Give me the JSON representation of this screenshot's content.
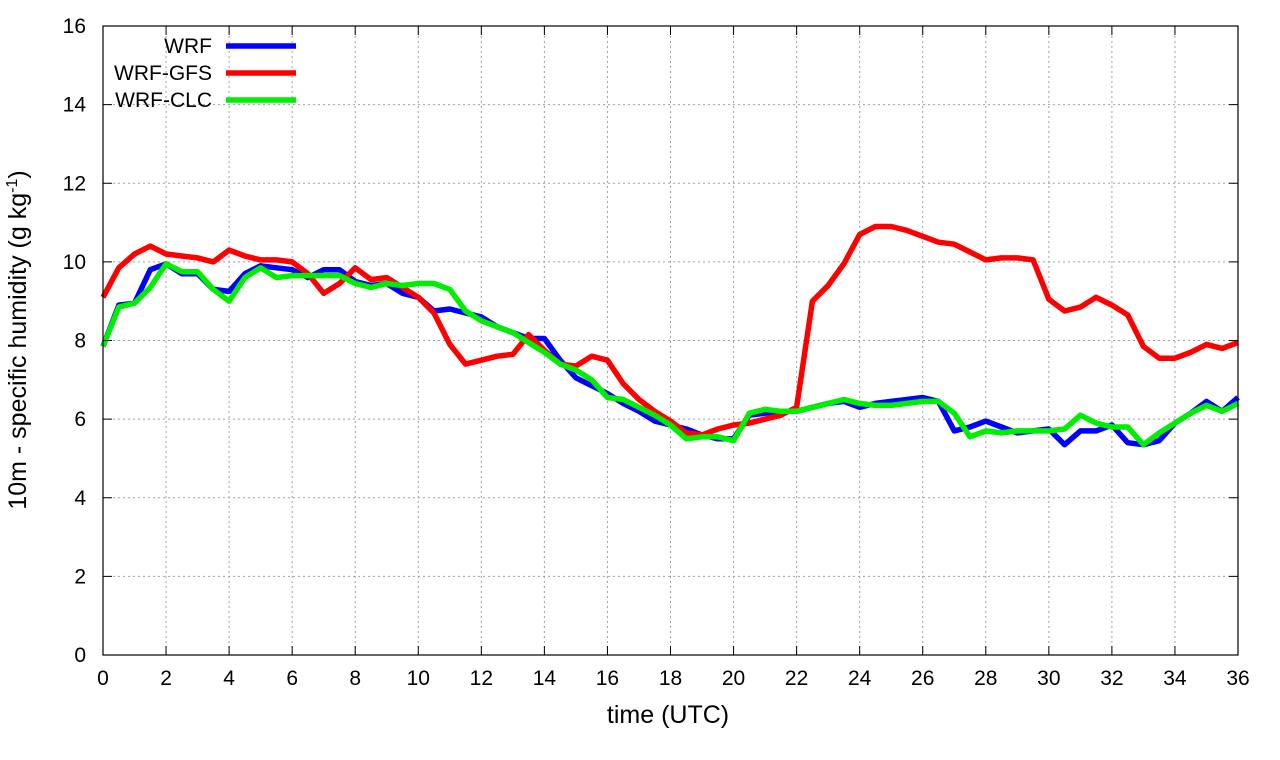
{
  "chart_data": {
    "type": "line",
    "xlabel": "time (UTC)",
    "ylabel": {
      "main": "10m - specific humidity (g kg",
      "sup": "-1",
      "end": ")"
    },
    "xlim": [
      0,
      36
    ],
    "ylim": [
      0,
      16
    ],
    "xticks": [
      0,
      2,
      4,
      6,
      8,
      10,
      12,
      14,
      16,
      18,
      20,
      22,
      24,
      26,
      28,
      30,
      32,
      34,
      36
    ],
    "yticks": [
      0,
      2,
      4,
      6,
      8,
      10,
      12,
      14,
      16
    ],
    "grid": true,
    "legend_position": "top-left",
    "series": [
      {
        "name": "WRF",
        "color": "#0000ff",
        "x": [
          0,
          0.5,
          1,
          1.5,
          2,
          2.5,
          3,
          3.5,
          4,
          4.5,
          5,
          5.5,
          6,
          6.5,
          7,
          7.5,
          8,
          8.5,
          9,
          9.5,
          10,
          10.5,
          11,
          11.5,
          12,
          12.5,
          13,
          13.5,
          14,
          14.5,
          15,
          15.5,
          16,
          16.5,
          17,
          17.5,
          18,
          18.5,
          19,
          19.5,
          20,
          20.5,
          21,
          21.5,
          22,
          22.5,
          23,
          23.5,
          24,
          24.5,
          25,
          25.5,
          26,
          26.5,
          27,
          27.5,
          28,
          28.5,
          29,
          29.5,
          30,
          30.5,
          31,
          31.5,
          32,
          32.5,
          33,
          33.5,
          34,
          34.5,
          35,
          35.5,
          36
        ],
        "values": [
          7.85,
          8.9,
          8.95,
          9.8,
          9.95,
          9.7,
          9.7,
          9.3,
          9.25,
          9.7,
          9.9,
          9.85,
          9.8,
          9.6,
          9.8,
          9.8,
          9.5,
          9.4,
          9.45,
          9.2,
          9.1,
          8.75,
          8.8,
          8.7,
          8.6,
          8.35,
          8.2,
          8.05,
          8.05,
          7.5,
          7.05,
          6.85,
          6.65,
          6.4,
          6.2,
          5.95,
          5.85,
          5.75,
          5.6,
          5.5,
          5.5,
          6.1,
          6.15,
          6.2,
          6.2,
          6.3,
          6.4,
          6.45,
          6.3,
          6.4,
          6.45,
          6.5,
          6.55,
          6.45,
          5.7,
          5.8,
          5.95,
          5.8,
          5.65,
          5.7,
          5.75,
          5.35,
          5.7,
          5.7,
          5.85,
          5.4,
          5.35,
          5.45,
          5.9,
          6.15,
          6.45,
          6.2,
          6.55
        ]
      },
      {
        "name": "WRF-GFS",
        "color": "#ff0000",
        "x": [
          0,
          0.5,
          1,
          1.5,
          2,
          2.5,
          3,
          3.5,
          4,
          4.5,
          5,
          5.5,
          6,
          6.5,
          7,
          7.5,
          8,
          8.5,
          9,
          9.5,
          10,
          10.5,
          11,
          11.5,
          12,
          12.5,
          13,
          13.5,
          14,
          14.5,
          15,
          15.5,
          16,
          16.5,
          17,
          17.5,
          18,
          18.5,
          19,
          19.5,
          20,
          20.5,
          21,
          21.5,
          22,
          22.5,
          23,
          23.5,
          24,
          24.5,
          25,
          25.5,
          26,
          26.5,
          27,
          27.5,
          28,
          28.5,
          29,
          29.5,
          30,
          30.5,
          31,
          31.5,
          32,
          32.5,
          33,
          33.5,
          34,
          34.5,
          35,
          35.5,
          36
        ],
        "values": [
          9.1,
          9.85,
          10.2,
          10.4,
          10.2,
          10.15,
          10.1,
          10.0,
          10.3,
          10.15,
          10.05,
          10.05,
          10.0,
          9.7,
          9.2,
          9.45,
          9.85,
          9.55,
          9.6,
          9.35,
          9.1,
          8.7,
          7.9,
          7.4,
          7.5,
          7.6,
          7.65,
          8.15,
          7.75,
          7.4,
          7.35,
          7.6,
          7.5,
          6.9,
          6.5,
          6.2,
          5.95,
          5.65,
          5.6,
          5.75,
          5.85,
          5.9,
          6.0,
          6.1,
          6.3,
          9.0,
          9.4,
          9.95,
          10.7,
          10.9,
          10.9,
          10.8,
          10.65,
          10.5,
          10.45,
          10.25,
          10.05,
          10.1,
          10.1,
          10.05,
          9.05,
          8.75,
          8.85,
          9.1,
          8.9,
          8.65,
          7.85,
          7.55,
          7.55,
          7.7,
          7.9,
          7.8,
          7.95
        ]
      },
      {
        "name": "WRF-CLC",
        "color": "#00ee00",
        "x": [
          0,
          0.5,
          1,
          1.5,
          2,
          2.5,
          3,
          3.5,
          4,
          4.5,
          5,
          5.5,
          6,
          6.5,
          7,
          7.5,
          8,
          8.5,
          9,
          9.5,
          10,
          10.5,
          11,
          11.5,
          12,
          12.5,
          13,
          13.5,
          14,
          14.5,
          15,
          15.5,
          16,
          16.5,
          17,
          17.5,
          18,
          18.5,
          19,
          19.5,
          20,
          20.5,
          21,
          21.5,
          22,
          22.5,
          23,
          23.5,
          24,
          24.5,
          25,
          25.5,
          26,
          26.5,
          27,
          27.5,
          28,
          28.5,
          29,
          29.5,
          30,
          30.5,
          31,
          31.5,
          32,
          32.5,
          33,
          33.5,
          34,
          34.5,
          35,
          35.5,
          36
        ],
        "values": [
          7.85,
          8.85,
          8.95,
          9.35,
          9.95,
          9.75,
          9.75,
          9.3,
          9.0,
          9.6,
          9.85,
          9.6,
          9.65,
          9.65,
          9.65,
          9.65,
          9.45,
          9.35,
          9.45,
          9.4,
          9.45,
          9.45,
          9.3,
          8.75,
          8.5,
          8.35,
          8.2,
          7.95,
          7.7,
          7.4,
          7.25,
          7.0,
          6.55,
          6.5,
          6.3,
          6.1,
          5.85,
          5.5,
          5.55,
          5.55,
          5.45,
          6.15,
          6.25,
          6.2,
          6.2,
          6.3,
          6.4,
          6.5,
          6.4,
          6.35,
          6.35,
          6.4,
          6.45,
          6.45,
          6.15,
          5.55,
          5.7,
          5.65,
          5.7,
          5.7,
          5.7,
          5.75,
          6.1,
          5.9,
          5.8,
          5.8,
          5.35,
          5.65,
          5.9,
          6.15,
          6.35,
          6.2,
          6.4
        ]
      }
    ]
  }
}
